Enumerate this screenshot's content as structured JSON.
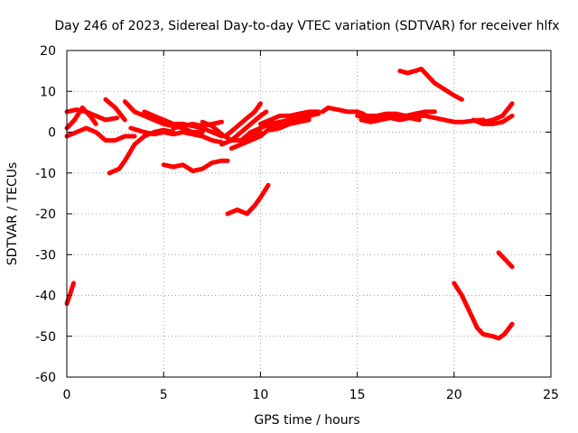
{
  "chart_data": {
    "type": "line",
    "title": "Day 246 of 2023, Sidereal Day-to-day VTEC variation (SDTVAR) for receiver hlfx",
    "xlabel": "GPS time / hours",
    "ylabel": "SDTVAR / TECUs",
    "xlim": [
      0,
      25
    ],
    "ylim": [
      -60,
      20
    ],
    "xticks": [
      0,
      5,
      10,
      15,
      20,
      25
    ],
    "yticks": [
      -60,
      -50,
      -40,
      -30,
      -20,
      -10,
      0,
      10,
      20
    ],
    "grid": true,
    "color": "#ff0000",
    "series": [
      {
        "name": "s1",
        "points": [
          [
            0.0,
            -42
          ],
          [
            0.15,
            -40
          ],
          [
            0.35,
            -37
          ]
        ]
      },
      {
        "name": "s2",
        "points": [
          [
            0.0,
            5
          ],
          [
            0.5,
            5.5
          ],
          [
            1.0,
            5
          ],
          [
            1.5,
            4
          ],
          [
            2.0,
            3
          ],
          [
            2.6,
            3.5
          ]
        ]
      },
      {
        "name": "s3",
        "points": [
          [
            0.0,
            1
          ],
          [
            0.4,
            3
          ],
          [
            0.8,
            6
          ],
          [
            1.2,
            4
          ],
          [
            1.5,
            2
          ]
        ]
      },
      {
        "name": "s4",
        "points": [
          [
            0.0,
            -1
          ],
          [
            0.5,
            0
          ],
          [
            1.0,
            1
          ],
          [
            1.5,
            0
          ],
          [
            2.0,
            -2
          ],
          [
            2.5,
            -2
          ],
          [
            3.0,
            -1
          ],
          [
            3.5,
            -1
          ]
        ]
      },
      {
        "name": "s5",
        "points": [
          [
            2.0,
            8
          ],
          [
            2.5,
            6
          ],
          [
            3.0,
            3
          ]
        ]
      },
      {
        "name": "s6",
        "points": [
          [
            2.2,
            -10
          ],
          [
            2.7,
            -9
          ],
          [
            3.0,
            -7
          ],
          [
            3.5,
            -3
          ],
          [
            4.0,
            -1
          ],
          [
            4.5,
            0
          ],
          [
            5.0,
            0.5
          ],
          [
            5.5,
            0
          ]
        ]
      },
      {
        "name": "s7",
        "points": [
          [
            3.0,
            7.5
          ],
          [
            3.5,
            5
          ],
          [
            4.0,
            4
          ],
          [
            4.5,
            3
          ],
          [
            5.0,
            2
          ],
          [
            5.5,
            1.5
          ],
          [
            6.0,
            1
          ],
          [
            6.5,
            0
          ],
          [
            7.0,
            0
          ]
        ]
      },
      {
        "name": "s8",
        "points": [
          [
            3.3,
            1
          ],
          [
            4.0,
            0
          ],
          [
            4.5,
            -0.5
          ],
          [
            5.0,
            0
          ],
          [
            5.5,
            -0.5
          ],
          [
            6.0,
            0
          ],
          [
            6.5,
            -0.5
          ],
          [
            7.0,
            -1
          ],
          [
            7.5,
            -2
          ],
          [
            8.0,
            -2.5
          ]
        ]
      },
      {
        "name": "s9",
        "points": [
          [
            4.0,
            5
          ],
          [
            4.5,
            4
          ],
          [
            5.0,
            3
          ],
          [
            5.5,
            2
          ],
          [
            6.0,
            2
          ],
          [
            6.5,
            1.5
          ],
          [
            7.0,
            1
          ],
          [
            7.5,
            0
          ],
          [
            8.0,
            -1
          ]
        ]
      },
      {
        "name": "s10",
        "points": [
          [
            5.0,
            -8
          ],
          [
            5.5,
            -8.5
          ],
          [
            6.0,
            -8
          ],
          [
            6.5,
            -9.5
          ],
          [
            7.0,
            -9
          ],
          [
            7.5,
            -7.5
          ],
          [
            8.0,
            -7
          ],
          [
            8.3,
            -7
          ]
        ]
      },
      {
        "name": "s11",
        "points": [
          [
            5.5,
            1
          ],
          [
            6.0,
            1.5
          ],
          [
            6.5,
            2
          ],
          [
            7.0,
            1.5
          ],
          [
            7.5,
            2
          ],
          [
            8.0,
            2.5
          ]
        ]
      },
      {
        "name": "s12",
        "points": [
          [
            7.0,
            2.5
          ],
          [
            7.5,
            1.5
          ],
          [
            8.0,
            -0.5
          ],
          [
            8.5,
            -2
          ],
          [
            9.0,
            -2
          ],
          [
            9.5,
            -1
          ],
          [
            10.0,
            0
          ]
        ]
      },
      {
        "name": "s13",
        "points": [
          [
            8.0,
            -3
          ],
          [
            8.5,
            -2
          ],
          [
            9.0,
            0
          ],
          [
            9.5,
            2
          ],
          [
            10.0,
            4
          ],
          [
            10.3,
            5
          ]
        ]
      },
      {
        "name": "s14",
        "points": [
          [
            8.2,
            -1
          ],
          [
            8.7,
            1
          ],
          [
            9.2,
            3
          ],
          [
            9.7,
            5
          ],
          [
            10.0,
            7
          ]
        ]
      },
      {
        "name": "s15",
        "points": [
          [
            8.3,
            -20
          ],
          [
            8.8,
            -19
          ],
          [
            9.3,
            -20
          ],
          [
            9.7,
            -18
          ],
          [
            10.0,
            -16
          ],
          [
            10.4,
            -13
          ]
        ]
      },
      {
        "name": "s16",
        "points": [
          [
            8.5,
            -4
          ],
          [
            9.0,
            -3
          ],
          [
            9.5,
            -2
          ],
          [
            10.0,
            -1
          ],
          [
            10.5,
            1
          ],
          [
            11.0,
            2
          ],
          [
            11.5,
            3
          ],
          [
            12.0,
            3.5
          ],
          [
            12.5,
            4
          ],
          [
            13.0,
            4.5
          ]
        ]
      },
      {
        "name": "s17",
        "points": [
          [
            9.0,
            -2
          ],
          [
            9.5,
            0
          ],
          [
            10.0,
            1
          ],
          [
            10.5,
            2
          ],
          [
            11.0,
            2.5
          ],
          [
            11.5,
            3
          ],
          [
            12.0,
            3
          ],
          [
            12.5,
            3.5
          ]
        ]
      },
      {
        "name": "s18",
        "points": [
          [
            10.0,
            2
          ],
          [
            10.5,
            3
          ],
          [
            11.0,
            4
          ],
          [
            11.5,
            4
          ],
          [
            12.0,
            4.5
          ],
          [
            12.5,
            5
          ],
          [
            13.0,
            5
          ]
        ]
      },
      {
        "name": "s19",
        "points": [
          [
            10.5,
            0.5
          ],
          [
            11.0,
            1
          ],
          [
            11.5,
            2
          ],
          [
            12.0,
            2.5
          ],
          [
            12.5,
            3
          ]
        ]
      },
      {
        "name": "s20",
        "points": [
          [
            13.2,
            5
          ],
          [
            13.5,
            6
          ],
          [
            14.0,
            5.5
          ],
          [
            14.5,
            5
          ],
          [
            15.0,
            5
          ],
          [
            15.3,
            4.5
          ]
        ]
      },
      {
        "name": "s21",
        "points": [
          [
            15.0,
            4
          ],
          [
            15.5,
            3.5
          ],
          [
            16.0,
            3
          ],
          [
            16.5,
            3.5
          ],
          [
            17.0,
            4
          ],
          [
            17.5,
            4
          ],
          [
            18.0,
            4
          ],
          [
            18.5,
            4
          ],
          [
            19.0,
            3.5
          ],
          [
            19.5,
            3
          ],
          [
            20.0,
            2.5
          ],
          [
            20.5,
            2.5
          ],
          [
            21.0,
            2.8
          ],
          [
            21.5,
            3
          ]
        ]
      },
      {
        "name": "s22",
        "points": [
          [
            15.0,
            5
          ],
          [
            15.5,
            4
          ],
          [
            16.0,
            4
          ],
          [
            16.5,
            4.5
          ],
          [
            17.0,
            4.5
          ],
          [
            17.5,
            4
          ],
          [
            18.0,
            4.5
          ],
          [
            18.5,
            5
          ],
          [
            19.0,
            5
          ]
        ]
      },
      {
        "name": "s23",
        "points": [
          [
            15.2,
            3
          ],
          [
            15.7,
            2.5
          ],
          [
            16.2,
            3
          ],
          [
            16.7,
            3.5
          ],
          [
            17.2,
            3
          ],
          [
            17.7,
            3.5
          ],
          [
            18.2,
            3
          ]
        ]
      },
      {
        "name": "s24",
        "points": [
          [
            17.2,
            15
          ],
          [
            17.6,
            14.5
          ],
          [
            18.0,
            15
          ],
          [
            18.3,
            15.5
          ],
          [
            18.6,
            14
          ],
          [
            19.0,
            12
          ],
          [
            19.5,
            10.5
          ],
          [
            20.0,
            9
          ],
          [
            20.4,
            8
          ]
        ]
      },
      {
        "name": "s25",
        "points": [
          [
            20.0,
            -37
          ],
          [
            20.4,
            -40
          ],
          [
            20.8,
            -44
          ],
          [
            21.2,
            -48
          ],
          [
            21.5,
            -49.5
          ],
          [
            22.0,
            -50
          ],
          [
            22.3,
            -50.5
          ],
          [
            22.6,
            -49.5
          ],
          [
            23.0,
            -47
          ]
        ]
      },
      {
        "name": "s26",
        "points": [
          [
            21.0,
            3
          ],
          [
            21.5,
            2
          ],
          [
            22.0,
            2
          ],
          [
            22.5,
            2.5
          ],
          [
            23.0,
            4
          ]
        ]
      },
      {
        "name": "s27",
        "points": [
          [
            21.5,
            2.5
          ],
          [
            22.0,
            3
          ],
          [
            22.5,
            4
          ],
          [
            23.0,
            7
          ]
        ]
      },
      {
        "name": "s28",
        "points": [
          [
            22.3,
            -29.5
          ],
          [
            22.6,
            -31
          ],
          [
            23.0,
            -33
          ]
        ]
      }
    ]
  }
}
